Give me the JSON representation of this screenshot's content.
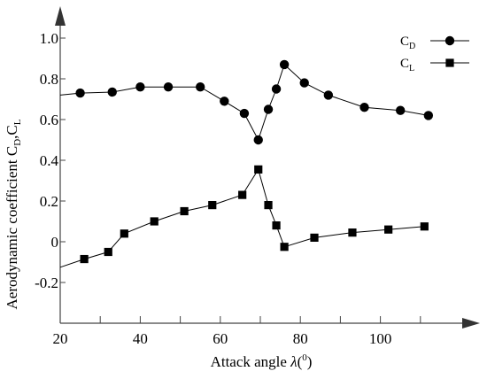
{
  "chart_data": {
    "type": "line",
    "xlabel": "Attack angle",
    "xlabel_symbol": "λ",
    "xlabel_unit_sup": "0",
    "ylabel": "Aerodynamic coefficient",
    "ylabel_symbols": [
      "C",
      "D",
      ",C",
      "L"
    ],
    "xlim": [
      20,
      120
    ],
    "ylim": [
      -0.35,
      1.15
    ],
    "x_ticks": [
      "20",
      "40",
      "60",
      "80",
      "100"
    ],
    "x_tick_values": [
      20,
      40,
      60,
      80,
      100
    ],
    "x_minor_ticks": [
      30,
      50,
      70,
      90,
      110
    ],
    "y_ticks": [
      "-0.2",
      "0",
      "0.2",
      "0.4",
      "0.6",
      "0.8",
      "1.0"
    ],
    "y_tick_values": [
      -0.2,
      0,
      0.2,
      0.4,
      0.6,
      0.8,
      1.0
    ],
    "grid": false,
    "legend_position": "top-right",
    "series": [
      {
        "name": "C",
        "name_sub": "D",
        "marker": "circle",
        "color": "#000000",
        "x": [
          20,
          25,
          33,
          40,
          47,
          55,
          61,
          66,
          69.5,
          72,
          74,
          76,
          81,
          87,
          96,
          105,
          112
        ],
        "y": [
          0.72,
          0.73,
          0.735,
          0.76,
          0.76,
          0.76,
          0.69,
          0.63,
          0.5,
          0.65,
          0.75,
          0.87,
          0.78,
          0.72,
          0.66,
          0.645,
          0.62
        ]
      },
      {
        "name": "C",
        "name_sub": "L",
        "marker": "square",
        "color": "#000000",
        "x": [
          20,
          26,
          32,
          36,
          43.5,
          51,
          58,
          65.5,
          69.5,
          72,
          74,
          76,
          83.5,
          93,
          102,
          111
        ],
        "y": [
          -0.125,
          -0.085,
          -0.05,
          0.04,
          0.1,
          0.15,
          0.18,
          0.23,
          0.355,
          0.18,
          0.08,
          -0.025,
          0.02,
          0.045,
          0.06,
          0.075
        ]
      }
    ]
  }
}
